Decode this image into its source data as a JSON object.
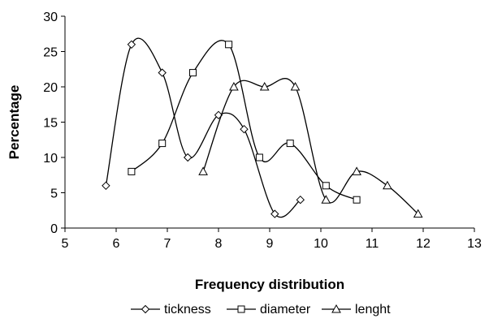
{
  "chart_data": {
    "type": "line",
    "title": "",
    "xlabel": "Frequency distribution",
    "ylabel": "Percentage",
    "xlim": [
      5,
      13
    ],
    "ylim": [
      0,
      30
    ],
    "xticks": [
      5,
      6,
      7,
      8,
      9,
      10,
      11,
      12,
      13
    ],
    "yticks": [
      0,
      5,
      10,
      15,
      20,
      25,
      30
    ],
    "smooth": true,
    "grid": false,
    "legend_position": "bottom",
    "series": [
      {
        "name": "tickness",
        "marker": "diamond",
        "color": "#000000",
        "x": [
          5.8,
          6.3,
          6.9,
          7.4,
          8.0,
          8.5,
          9.1,
          9.6
        ],
        "y": [
          6,
          26,
          22,
          10,
          16,
          14,
          2,
          4
        ]
      },
      {
        "name": "diameter",
        "marker": "square",
        "color": "#000000",
        "x": [
          6.3,
          6.9,
          7.5,
          8.2,
          8.8,
          9.4,
          10.1,
          10.7
        ],
        "y": [
          8,
          12,
          22,
          26,
          10,
          12,
          6,
          4
        ]
      },
      {
        "name": "lenght",
        "marker": "triangle",
        "color": "#000000",
        "x": [
          7.7,
          8.3,
          8.9,
          9.5,
          10.1,
          10.7,
          11.3,
          11.9
        ],
        "y": [
          8,
          20,
          20,
          20,
          4,
          8,
          6,
          2
        ]
      }
    ]
  }
}
